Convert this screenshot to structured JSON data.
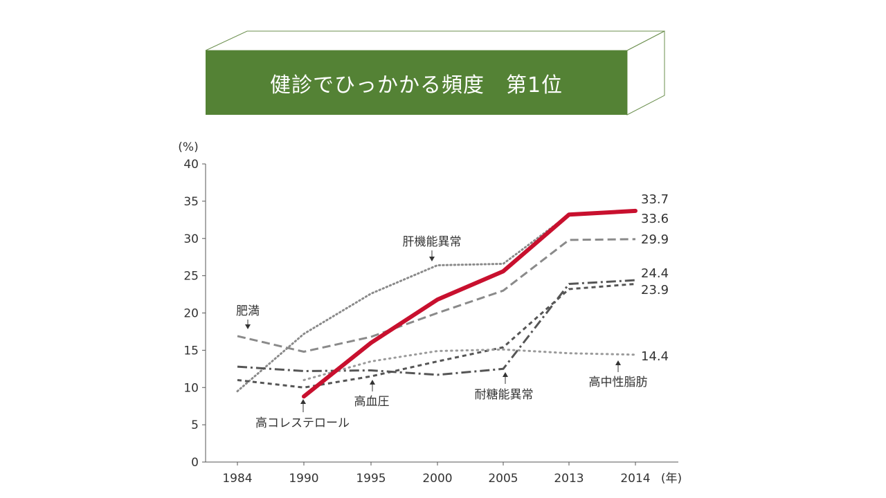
{
  "header": {
    "title": "健診でひっかかる頻度　第1位",
    "color": "#548235"
  },
  "chart_data": {
    "type": "line",
    "y_unit": "(%)",
    "x_unit": "(年)",
    "categories": [
      "1984",
      "1990",
      "1995",
      "2000",
      "2005",
      "2013",
      "2014"
    ],
    "ylim": [
      0,
      40
    ],
    "yticks": [
      "0",
      "5",
      "10",
      "15",
      "20",
      "25",
      "30",
      "35",
      "40"
    ],
    "series": [
      {
        "name": "肝機能異常",
        "style": "dotted",
        "color": "#8a8a8a",
        "values": [
          9.5,
          17.2,
          22.6,
          26.4,
          26.6,
          33.2,
          33.6
        ],
        "end_label": "33.6"
      },
      {
        "name": "高コレステロール",
        "style": "solid-bold",
        "color": "#c8102e",
        "values": [
          null,
          8.8,
          16.0,
          21.8,
          25.6,
          33.2,
          33.7
        ],
        "end_label": "33.7"
      },
      {
        "name": "肥満",
        "style": "dashed",
        "color": "#8a8a8a",
        "values": [
          16.9,
          14.8,
          16.8,
          20.0,
          23.0,
          29.8,
          29.9
        ],
        "end_label": "29.9"
      },
      {
        "name": "耐糖能異常",
        "style": "dashdot",
        "color": "#555555",
        "values": [
          12.8,
          12.2,
          12.3,
          11.7,
          12.5,
          23.9,
          24.4
        ],
        "end_label": "24.4"
      },
      {
        "name": "高血圧",
        "style": "short-dash",
        "color": "#555555",
        "values": [
          11.0,
          10.0,
          11.5,
          13.5,
          15.4,
          23.2,
          23.9
        ],
        "end_label": "23.9"
      },
      {
        "name": "高中性脂肪",
        "style": "dotted-light",
        "color": "#9a9a9a",
        "values": [
          null,
          11.0,
          13.5,
          14.9,
          15.1,
          14.6,
          14.4
        ],
        "end_label": "14.4"
      }
    ]
  }
}
